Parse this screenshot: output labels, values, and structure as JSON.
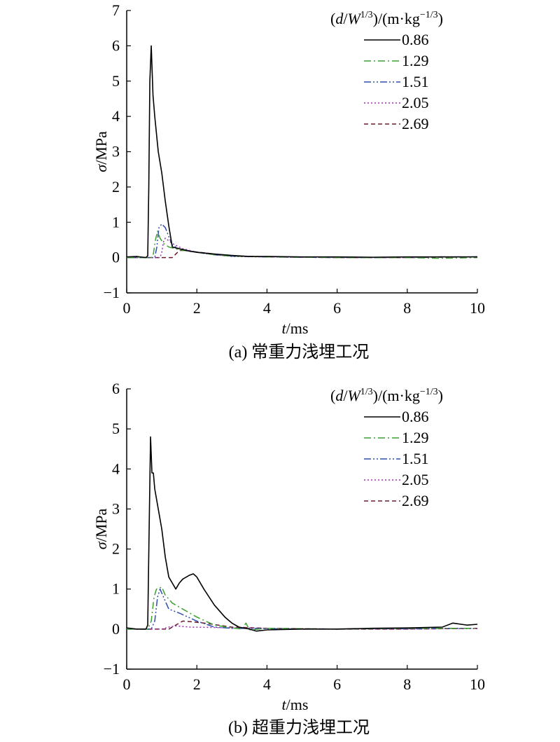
{
  "chart_data": [
    {
      "type": "line",
      "caption": "(a) 常重力浅埋工况",
      "xlabel_var": "t",
      "xlabel_unit": "/ms",
      "ylabel_var": "σ",
      "ylabel_unit": "/MPa",
      "xlim": [
        0,
        10
      ],
      "ylim": [
        -1,
        7
      ],
      "xticks": [
        0,
        2,
        4,
        6,
        8,
        10
      ],
      "yticks": [
        -1,
        0,
        1,
        2,
        3,
        4,
        5,
        6,
        7
      ],
      "legend": {
        "title_parts": [
          "(",
          "d",
          "/",
          "W",
          "1/3",
          ")/(m·kg",
          "−1/3",
          ")"
        ],
        "placement": "top-right"
      },
      "series": [
        {
          "name": "0.86",
          "color": "#000000",
          "dash": "solid",
          "x": [
            0,
            0.3,
            0.55,
            0.6,
            0.63,
            0.66,
            0.7,
            0.75,
            0.8,
            0.9,
            1.0,
            1.1,
            1.2,
            1.3,
            1.5,
            1.8,
            2.0,
            2.5,
            3.0,
            3.5,
            4.0,
            5,
            6,
            7,
            8,
            9,
            10
          ],
          "y": [
            0.02,
            0.03,
            0.0,
            0.05,
            2.0,
            5.0,
            6.0,
            4.6,
            4.0,
            3.0,
            2.4,
            1.6,
            0.9,
            0.3,
            0.25,
            0.18,
            0.15,
            0.1,
            0.06,
            0.03,
            0.03,
            0.02,
            0.02,
            0.01,
            0.02,
            0.02,
            0.02
          ]
        },
        {
          "name": "1.29",
          "color": "#3aa02e",
          "dash": "dashdot",
          "x": [
            0,
            0.7,
            0.76,
            0.82,
            0.88,
            0.95,
            1.05,
            1.2,
            1.5,
            2.0,
            2.5,
            3.0,
            4,
            5,
            6,
            7,
            8,
            8.9,
            10
          ],
          "y": [
            0,
            0,
            0.1,
            0.5,
            0.75,
            0.55,
            0.4,
            0.3,
            0.22,
            0.15,
            0.08,
            0.04,
            0.02,
            0.01,
            0,
            0,
            0,
            -0.02,
            0
          ]
        },
        {
          "name": "1.51",
          "color": "#2f4db0",
          "dash": "dashdotdot",
          "x": [
            0,
            0.8,
            0.86,
            0.92,
            1.0,
            1.1,
            1.2,
            1.3,
            1.5,
            2.0,
            2.5,
            3.0,
            4,
            5,
            6,
            7,
            8,
            9,
            10
          ],
          "y": [
            0,
            0,
            0.3,
            0.85,
            0.95,
            0.85,
            0.6,
            0.35,
            0.25,
            0.15,
            0.08,
            0.04,
            0.02,
            0.01,
            0.01,
            0,
            0.01,
            0.02,
            0.02
          ]
        },
        {
          "name": "2.05",
          "color": "#a02cb0",
          "dash": "dotted",
          "x": [
            0,
            0.95,
            1.0,
            1.05,
            1.1,
            1.3,
            1.6,
            2.0,
            2.5,
            3.0,
            4,
            5,
            6,
            7,
            8,
            9,
            10
          ],
          "y": [
            0,
            0,
            0.15,
            0.45,
            0.55,
            0.4,
            0.25,
            0.15,
            0.08,
            0.03,
            0.02,
            0.01,
            0,
            0,
            0,
            0.02,
            0.02
          ]
        },
        {
          "name": "2.69",
          "color": "#6b1a2a",
          "dash": "dashed",
          "x": [
            0,
            1.3,
            1.4,
            1.5,
            1.7,
            2.0,
            2.5,
            3.0,
            4,
            5,
            6,
            7,
            8,
            9,
            10
          ],
          "y": [
            0,
            0,
            0.1,
            0.2,
            0.2,
            0.16,
            0.1,
            0.05,
            0.02,
            0.01,
            0,
            0,
            0,
            0.01,
            0.02
          ]
        }
      ]
    },
    {
      "type": "line",
      "caption": "(b) 超重力浅埋工况",
      "xlabel_var": "t",
      "xlabel_unit": "/ms",
      "ylabel_var": "σ",
      "ylabel_unit": "/MPa",
      "xlim": [
        0,
        10
      ],
      "ylim": [
        -1,
        6
      ],
      "xticks": [
        0,
        2,
        4,
        6,
        8,
        10
      ],
      "yticks": [
        -1,
        0,
        1,
        2,
        3,
        4,
        5,
        6
      ],
      "legend": {
        "title_parts": [
          "(",
          "d",
          "/",
          "W",
          "1/3",
          ")/(m·kg",
          "−1/3",
          ")"
        ],
        "placement": "top-right"
      },
      "series": [
        {
          "name": "0.86",
          "color": "#000000",
          "dash": "solid",
          "x": [
            0,
            0.3,
            0.55,
            0.6,
            0.64,
            0.68,
            0.72,
            0.76,
            0.8,
            0.9,
            1.0,
            1.1,
            1.2,
            1.3,
            1.4,
            1.5,
            1.6,
            1.8,
            1.9,
            2.0,
            2.2,
            2.5,
            2.8,
            3.0,
            3.2,
            3.5,
            3.7,
            4.0,
            5,
            6,
            7,
            8,
            9,
            9.3,
            9.7,
            10
          ],
          "y": [
            0.03,
            0.0,
            0.0,
            0.1,
            2.5,
            4.8,
            3.9,
            3.9,
            3.5,
            3.0,
            2.5,
            1.8,
            1.3,
            1.15,
            1.0,
            1.15,
            1.25,
            1.35,
            1.38,
            1.3,
            1.0,
            0.6,
            0.3,
            0.15,
            0.05,
            0.0,
            -0.05,
            -0.02,
            0.0,
            0.0,
            0.02,
            0.03,
            0.05,
            0.15,
            0.1,
            0.12
          ]
        },
        {
          "name": "1.29",
          "color": "#3aa02e",
          "dash": "dashdot",
          "x": [
            0,
            0.6,
            0.7,
            0.78,
            0.85,
            1.0,
            1.1,
            1.3,
            1.6,
            2.0,
            2.5,
            3.0,
            3.3,
            3.4,
            3.5,
            4,
            5,
            6,
            7,
            8,
            9,
            10
          ],
          "y": [
            0,
            0,
            0.2,
            0.8,
            1.0,
            1.05,
            0.85,
            0.65,
            0.5,
            0.3,
            0.1,
            0.03,
            0.0,
            0.15,
            -0.02,
            0.02,
            0.01,
            0.0,
            0.01,
            0.02,
            0.02,
            0.02
          ]
        },
        {
          "name": "1.51",
          "color": "#2f4db0",
          "dash": "dashdotdot",
          "x": [
            0,
            0.7,
            0.8,
            0.88,
            0.95,
            1.05,
            1.2,
            1.5,
            2.0,
            2.5,
            3.0,
            4,
            5,
            6,
            7,
            8,
            9,
            10
          ],
          "y": [
            0,
            0,
            0.2,
            0.8,
            1.0,
            0.8,
            0.5,
            0.4,
            0.2,
            0.05,
            0.02,
            0.01,
            0.0,
            0.0,
            0.01,
            0.01,
            0.02,
            0.02
          ]
        },
        {
          "name": "2.05",
          "color": "#a02cb0",
          "dash": "dotted",
          "x": [
            0,
            1.0,
            1.2,
            1.4,
            1.8,
            2.5,
            3.0,
            4,
            5,
            6,
            7,
            8,
            9,
            10
          ],
          "y": [
            0,
            0,
            0.05,
            0.08,
            0.05,
            0.04,
            0.03,
            0.02,
            0.01,
            0.0,
            0.0,
            0.0,
            0.01,
            0.01
          ]
        },
        {
          "name": "2.69",
          "color": "#6b1a2a",
          "dash": "dashed",
          "x": [
            0,
            1.2,
            1.4,
            1.6,
            1.9,
            2.2,
            2.6,
            3.0,
            4,
            5,
            6,
            7,
            8,
            9,
            10
          ],
          "y": [
            0,
            0,
            0.1,
            0.2,
            0.18,
            0.15,
            0.1,
            0.05,
            0.02,
            0.01,
            0.0,
            0.0,
            0.0,
            0.01,
            0.02
          ]
        }
      ]
    }
  ]
}
